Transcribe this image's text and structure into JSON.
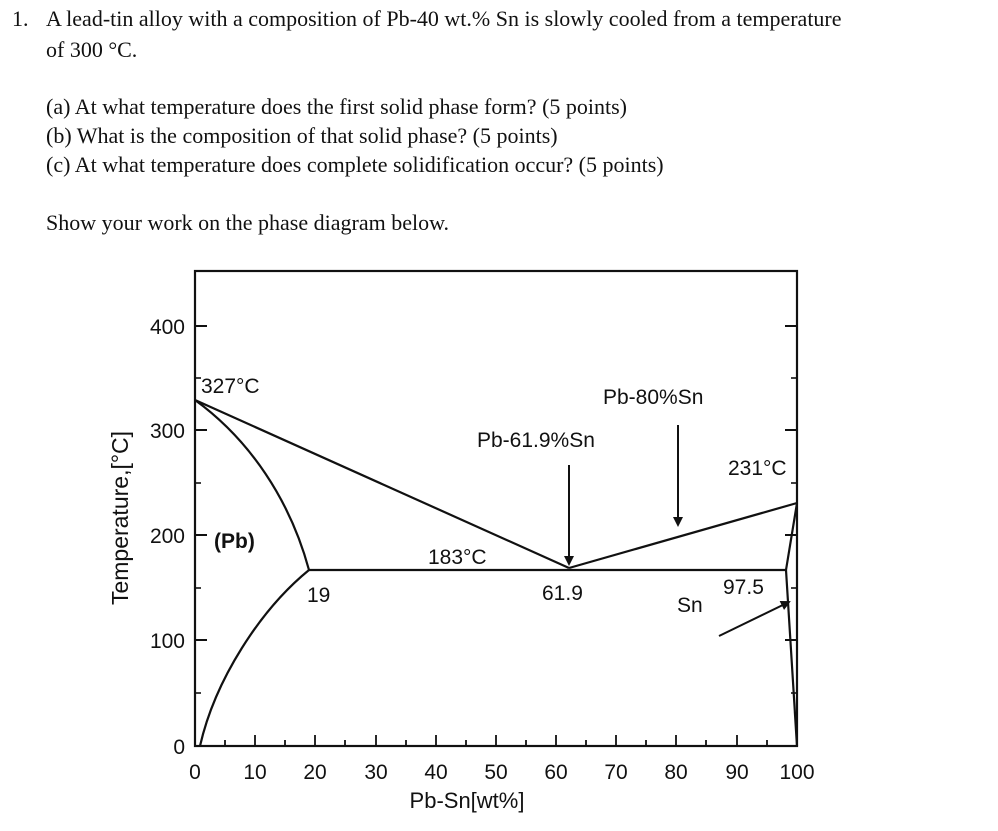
{
  "problem": {
    "number": "1.",
    "statement_line1": "A lead-tin alloy with a composition of Pb-40 wt.% Sn is slowly cooled from a temperature",
    "statement_line2": "of 300 °C.",
    "parts": [
      "(a) At what temperature does the first solid phase form? (5 points)",
      "(b) What is the composition of that solid phase? (5 points)",
      "(c) At what temperature does complete solidification occur? (5 points)"
    ],
    "instruction": "Show your work on the phase diagram below."
  },
  "diagram": {
    "xlabel": "Pb-Sn[wt%]",
    "ylabel": "Temperature,[°C]",
    "x_ticks": [
      "0",
      "10",
      "20",
      "30",
      "40",
      "50",
      "60",
      "70",
      "80",
      "90",
      "100"
    ],
    "y_ticks": [
      "0",
      "100",
      "200",
      "300",
      "400"
    ],
    "labels": {
      "pb_melt": "327°C",
      "sn_melt": "231°C",
      "eutectic_temp": "183°C",
      "pb_phase": "(Pb)",
      "sn_phase": "Sn",
      "alpha_max": "19",
      "eutectic_comp": "61.9",
      "beta_min": "97.5",
      "eutectic_alloy": "Pb-61.9%Sn",
      "alloy_80": "Pb-80%Sn"
    }
  }
}
